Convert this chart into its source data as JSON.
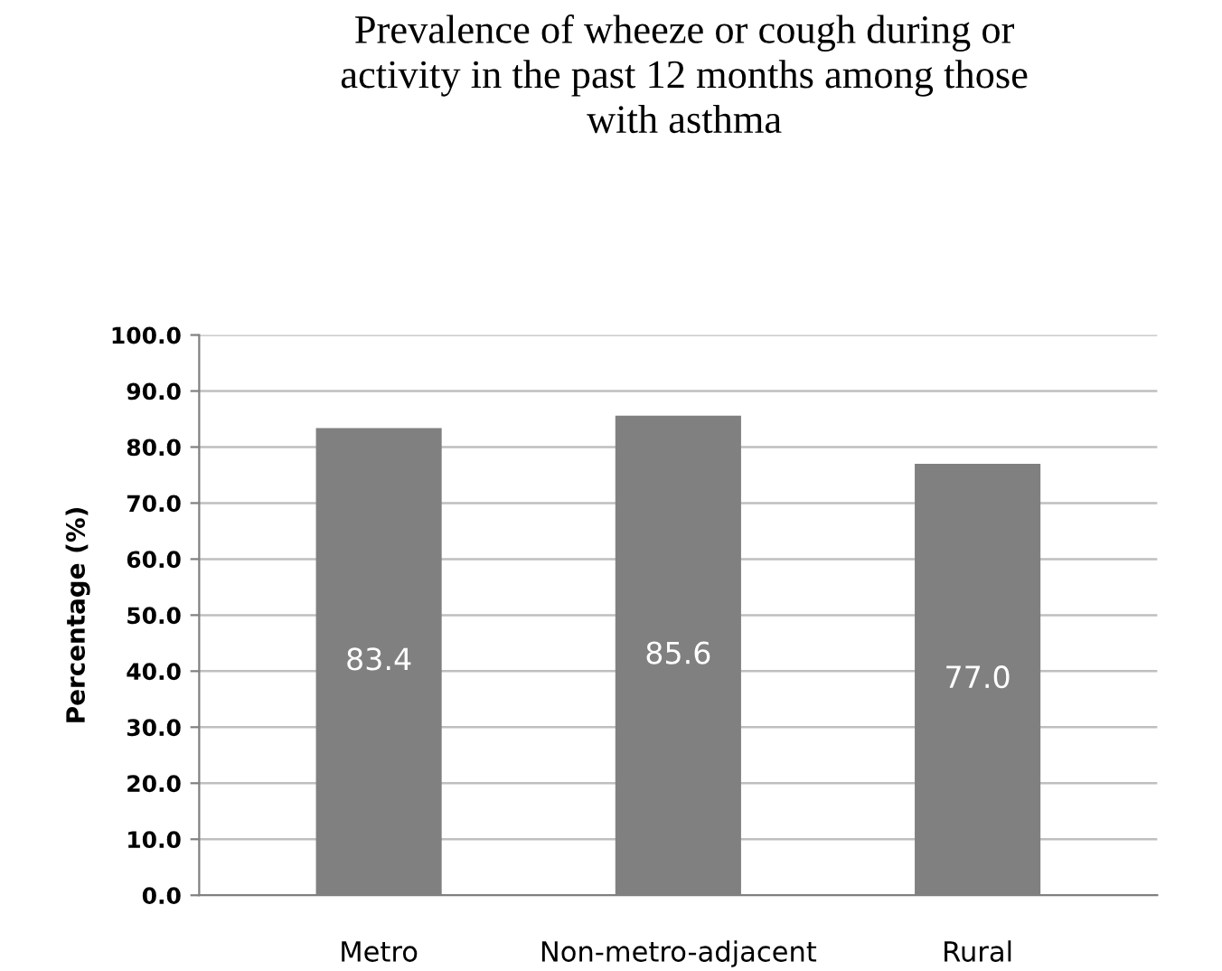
{
  "chart_data": {
    "type": "bar",
    "title": "Prevalence of wheeze or cough during or\nactivity in the past 12 months among those\nwith asthma",
    "ylabel": "Percentage (%)",
    "categories": [
      "Metro",
      "Non-metro-adjacent",
      "Rural"
    ],
    "values": [
      83.4,
      85.6,
      77.0
    ],
    "color": "#808080",
    "value_labels": [
      "83.4",
      "85.6",
      "77.0"
    ],
    "ylim": [
      0,
      100
    ],
    "yticks": [
      {
        "value": 0,
        "label": "0.0"
      },
      {
        "value": 10,
        "label": "10.0"
      },
      {
        "value": 20,
        "label": "20.0"
      },
      {
        "value": 30,
        "label": "30.0"
      },
      {
        "value": 40,
        "label": "40.0"
      },
      {
        "value": 50,
        "label": "50.0"
      },
      {
        "value": 60,
        "label": "60.0"
      },
      {
        "value": 70,
        "label": "70.0"
      },
      {
        "value": 80,
        "label": "80.0"
      },
      {
        "value": 90,
        "label": "90.0"
      },
      {
        "value": 100,
        "label": "100.0"
      }
    ],
    "grid": "y"
  }
}
